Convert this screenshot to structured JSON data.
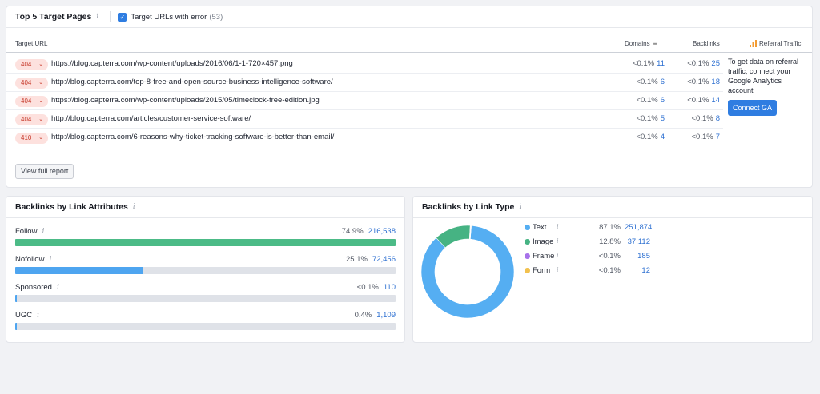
{
  "target_pages": {
    "title": "Top 5 Target Pages",
    "checkbox_label": "Target URLs with error",
    "checkbox_count": "(53)",
    "columns": {
      "url": "Target URL",
      "domains": "Domains",
      "backlinks": "Backlinks",
      "referral": "Referral Traffic"
    },
    "rows": [
      {
        "status": "404",
        "url": "https://blog.capterra.com/wp-content/uploads/2016/06/1-1-720×457.png",
        "domains_pct": "<0.1%",
        "domains": "11",
        "backlinks_pct": "<0.1%",
        "backlinks": "25"
      },
      {
        "status": "404",
        "url": "http://blog.capterra.com/top-8-free-and-open-source-business-intelligence-software/",
        "domains_pct": "<0.1%",
        "domains": "6",
        "backlinks_pct": "<0.1%",
        "backlinks": "18"
      },
      {
        "status": "404",
        "url": "https://blog.capterra.com/wp-content/uploads/2015/05/timeclock-free-edition.jpg",
        "domains_pct": "<0.1%",
        "domains": "6",
        "backlinks_pct": "<0.1%",
        "backlinks": "14"
      },
      {
        "status": "404",
        "url": "http://blog.capterra.com/articles/customer-service-software/",
        "domains_pct": "<0.1%",
        "domains": "5",
        "backlinks_pct": "<0.1%",
        "backlinks": "8"
      },
      {
        "status": "410",
        "url": "http://blog.capterra.com/6-reasons-why-ticket-tracking-software-is-better-than-email/",
        "domains_pct": "<0.1%",
        "domains": "4",
        "backlinks_pct": "<0.1%",
        "backlinks": "7"
      }
    ],
    "referral_text": "To get data on referral traffic, connect your Google Analytics account",
    "connect_ga": "Connect GA",
    "view_full_report": "View full report"
  },
  "link_attributes": {
    "title": "Backlinks by Link Attributes",
    "items": [
      {
        "label": "Follow",
        "pct": "74.9%",
        "count": "216,538",
        "fraction": 0.999,
        "color": "#4cbb87"
      },
      {
        "label": "Nofollow",
        "pct": "25.1%",
        "count": "72,456",
        "fraction": 0.335,
        "color": "#4ea5f0"
      },
      {
        "label": "Sponsored",
        "pct": "<0.1%",
        "count": "110",
        "fraction": 0.003,
        "color": "#4ea5f0"
      },
      {
        "label": "UGC",
        "pct": "0.4%",
        "count": "1,109",
        "fraction": 0.005,
        "color": "#4ea5f0"
      }
    ]
  },
  "link_type": {
    "title": "Backlinks by Link Type",
    "items": [
      {
        "label": "Text",
        "pct": "87.1%",
        "count": "251,874",
        "value": 87.1,
        "color": "#55aef2"
      },
      {
        "label": "Image",
        "pct": "12.8%",
        "count": "37,112",
        "value": 12.8,
        "color": "#46b383"
      },
      {
        "label": "Frame",
        "pct": "<0.1%",
        "count": "185",
        "value": 0.06,
        "color": "#a772ea"
      },
      {
        "label": "Form",
        "pct": "<0.1%",
        "count": "12",
        "value": 0.04,
        "color": "#f2c14e"
      }
    ]
  }
}
